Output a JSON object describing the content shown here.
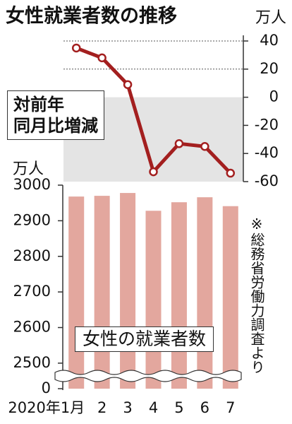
{
  "chart_data": [
    {
      "type": "line",
      "title": "女性就業者数の推移",
      "y_unit": "万人",
      "series": [
        {
          "name": "対前年\n同月比増減",
          "color": "#a31f1f",
          "values": [
            35,
            28,
            9,
            -53,
            -33,
            -35,
            -54
          ]
        }
      ],
      "ylim": [
        -60,
        40
      ],
      "yticks": [
        40,
        20,
        0,
        -20,
        -40,
        -60
      ],
      "shade_below": 0,
      "grid": true
    },
    {
      "type": "bar",
      "y_unit": "万人",
      "categories": [
        "2020年1月",
        "2",
        "3",
        "4",
        "5",
        "6",
        "7"
      ],
      "series": [
        {
          "name": "女性の就業者数",
          "color": "#e3a79e",
          "values": [
            2968,
            2970,
            2978,
            2928,
            2952,
            2966,
            2941
          ]
        }
      ],
      "ylim": [
        0,
        3000
      ],
      "axis_break": [
        0,
        2470
      ],
      "yticks": [
        0,
        2500,
        2600,
        2700,
        2800,
        2900,
        3000
      ],
      "note": "※総務省労働力調査より"
    }
  ]
}
